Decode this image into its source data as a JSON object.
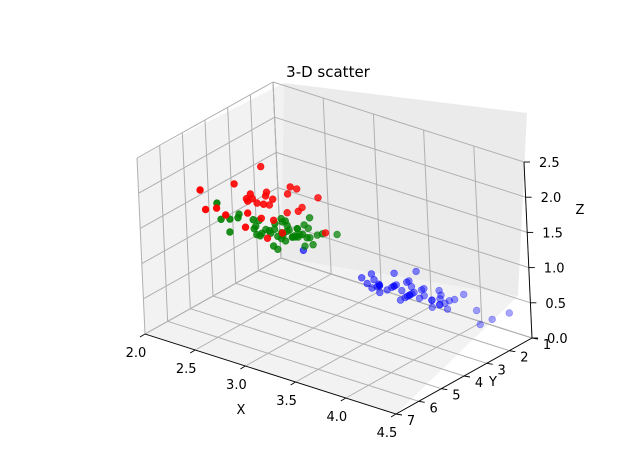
{
  "chart_data": {
    "type": "scatter",
    "title": "3-D scatter",
    "xlabel": "X",
    "ylabel": "Y",
    "zlabel": "Z",
    "xlim": [
      2.0,
      4.5
    ],
    "ylim": [
      1,
      7
    ],
    "zlim": [
      0.0,
      2.5
    ],
    "xticks": [
      "2.0",
      "2.5",
      "3.0",
      "3.5",
      "4.0",
      "4.5"
    ],
    "yticks": [
      "1",
      "2",
      "3",
      "4",
      "5",
      "6",
      "7"
    ],
    "zticks": [
      "0.0",
      "0.5",
      "1.0",
      "1.5",
      "2.0",
      "2.5"
    ],
    "grid": true,
    "series": [
      {
        "color": "#0000ff",
        "points": [
          [
            3.6,
            1.4,
            0.2
          ],
          [
            3.4,
            1.3,
            0.2
          ],
          [
            3.2,
            1.3,
            0.2
          ],
          [
            3.1,
            1.5,
            0.2
          ],
          [
            3.6,
            1.4,
            0.2
          ],
          [
            3.9,
            1.7,
            0.4
          ],
          [
            3.4,
            1.4,
            0.3
          ],
          [
            3.4,
            1.5,
            0.2
          ],
          [
            2.9,
            1.4,
            0.2
          ],
          [
            3.1,
            1.5,
            0.1
          ],
          [
            3.7,
            1.5,
            0.2
          ],
          [
            3.4,
            1.6,
            0.2
          ],
          [
            3.0,
            1.4,
            0.1
          ],
          [
            3.0,
            1.1,
            0.1
          ],
          [
            4.0,
            1.2,
            0.2
          ],
          [
            4.4,
            1.5,
            0.4
          ],
          [
            3.9,
            1.3,
            0.4
          ],
          [
            3.5,
            1.4,
            0.3
          ],
          [
            3.8,
            1.7,
            0.3
          ],
          [
            3.8,
            1.5,
            0.3
          ],
          [
            3.4,
            1.7,
            0.2
          ],
          [
            3.7,
            1.5,
            0.4
          ],
          [
            3.6,
            1.0,
            0.2
          ],
          [
            3.3,
            1.7,
            0.5
          ],
          [
            3.4,
            1.9,
            0.2
          ],
          [
            3.0,
            1.6,
            0.2
          ],
          [
            3.4,
            1.6,
            0.4
          ],
          [
            3.5,
            1.5,
            0.2
          ],
          [
            3.4,
            1.4,
            0.2
          ],
          [
            3.2,
            1.6,
            0.2
          ],
          [
            3.1,
            1.6,
            0.2
          ],
          [
            3.4,
            1.5,
            0.4
          ],
          [
            4.1,
            1.5,
            0.1
          ],
          [
            4.2,
            1.4,
            0.2
          ],
          [
            3.1,
            1.5,
            0.2
          ],
          [
            3.2,
            1.2,
            0.2
          ],
          [
            3.5,
            1.3,
            0.2
          ],
          [
            3.6,
            1.4,
            0.1
          ],
          [
            3.0,
            1.3,
            0.2
          ],
          [
            3.4,
            1.5,
            0.2
          ],
          [
            3.5,
            1.3,
            0.3
          ],
          [
            2.3,
            1.3,
            0.3
          ],
          [
            3.2,
            1.3,
            0.2
          ],
          [
            3.5,
            1.6,
            0.6
          ],
          [
            3.8,
            1.9,
            0.4
          ],
          [
            3.0,
            1.4,
            0.3
          ],
          [
            3.8,
            1.6,
            0.2
          ],
          [
            3.2,
            1.4,
            0.2
          ],
          [
            3.7,
            1.5,
            0.2
          ],
          [
            3.3,
            1.4,
            0.2
          ]
        ]
      },
      {
        "color": "#008000",
        "points": [
          [
            3.2,
            4.7,
            1.4
          ],
          [
            3.2,
            4.5,
            1.5
          ],
          [
            3.1,
            4.9,
            1.5
          ],
          [
            2.3,
            4.0,
            1.3
          ],
          [
            2.8,
            4.6,
            1.5
          ],
          [
            2.8,
            4.5,
            1.3
          ],
          [
            3.3,
            4.7,
            1.6
          ],
          [
            2.4,
            3.3,
            1.0
          ],
          [
            2.9,
            4.6,
            1.3
          ],
          [
            2.7,
            3.9,
            1.4
          ],
          [
            2.0,
            3.5,
            1.0
          ],
          [
            3.0,
            4.2,
            1.5
          ],
          [
            2.2,
            4.0,
            1.0
          ],
          [
            2.9,
            4.7,
            1.4
          ],
          [
            2.9,
            3.6,
            1.3
          ],
          [
            3.1,
            4.4,
            1.4
          ],
          [
            3.0,
            4.5,
            1.5
          ],
          [
            2.7,
            4.1,
            1.0
          ],
          [
            2.2,
            4.5,
            1.5
          ],
          [
            2.5,
            3.9,
            1.1
          ],
          [
            3.2,
            4.8,
            1.8
          ],
          [
            2.8,
            4.0,
            1.3
          ],
          [
            2.5,
            4.9,
            1.5
          ],
          [
            2.8,
            4.7,
            1.2
          ],
          [
            2.9,
            4.3,
            1.3
          ],
          [
            3.0,
            4.4,
            1.4
          ],
          [
            2.8,
            4.8,
            1.4
          ],
          [
            3.0,
            5.0,
            1.7
          ],
          [
            2.9,
            4.5,
            1.5
          ],
          [
            2.6,
            3.5,
            1.0
          ],
          [
            2.4,
            3.8,
            1.1
          ],
          [
            2.4,
            3.7,
            1.0
          ],
          [
            2.7,
            3.9,
            1.2
          ],
          [
            2.7,
            5.1,
            1.6
          ],
          [
            3.0,
            4.5,
            1.5
          ],
          [
            3.4,
            4.5,
            1.6
          ],
          [
            3.1,
            4.7,
            1.5
          ],
          [
            2.3,
            4.4,
            1.3
          ],
          [
            3.0,
            4.1,
            1.3
          ],
          [
            2.5,
            4.0,
            1.3
          ],
          [
            2.6,
            4.4,
            1.2
          ],
          [
            3.0,
            4.6,
            1.4
          ],
          [
            2.6,
            4.0,
            1.2
          ],
          [
            2.3,
            3.3,
            1.0
          ],
          [
            2.7,
            4.2,
            1.3
          ],
          [
            3.0,
            4.2,
            1.2
          ],
          [
            2.9,
            4.2,
            1.3
          ],
          [
            2.9,
            4.3,
            1.3
          ],
          [
            2.5,
            3.0,
            1.1
          ],
          [
            2.8,
            4.1,
            1.3
          ]
        ]
      },
      {
        "color": "#ff0000",
        "points": [
          [
            3.3,
            6.0,
            2.5
          ],
          [
            2.7,
            5.1,
            1.9
          ],
          [
            3.0,
            5.9,
            2.1
          ],
          [
            2.9,
            5.6,
            1.8
          ],
          [
            3.0,
            5.8,
            2.2
          ],
          [
            3.0,
            6.6,
            2.1
          ],
          [
            2.5,
            4.5,
            1.7
          ],
          [
            2.9,
            6.3,
            1.8
          ],
          [
            2.5,
            5.8,
            1.8
          ],
          [
            3.6,
            6.1,
            2.5
          ],
          [
            3.2,
            5.1,
            2.0
          ],
          [
            2.7,
            5.3,
            1.9
          ],
          [
            3.0,
            5.5,
            2.1
          ],
          [
            2.5,
            5.0,
            2.0
          ],
          [
            2.8,
            5.1,
            2.4
          ],
          [
            3.2,
            5.3,
            2.3
          ],
          [
            3.0,
            5.5,
            1.8
          ],
          [
            3.8,
            6.7,
            2.2
          ],
          [
            2.6,
            6.9,
            2.3
          ],
          [
            2.2,
            5.0,
            1.5
          ],
          [
            3.2,
            5.7,
            2.3
          ],
          [
            2.8,
            4.9,
            2.0
          ],
          [
            2.8,
            6.7,
            2.0
          ],
          [
            2.7,
            4.9,
            1.8
          ],
          [
            3.3,
            5.7,
            2.1
          ],
          [
            3.2,
            6.0,
            1.8
          ],
          [
            2.8,
            4.8,
            1.8
          ],
          [
            3.0,
            4.9,
            1.8
          ],
          [
            2.8,
            5.6,
            2.1
          ],
          [
            3.0,
            5.8,
            1.6
          ]
        ]
      }
    ]
  }
}
